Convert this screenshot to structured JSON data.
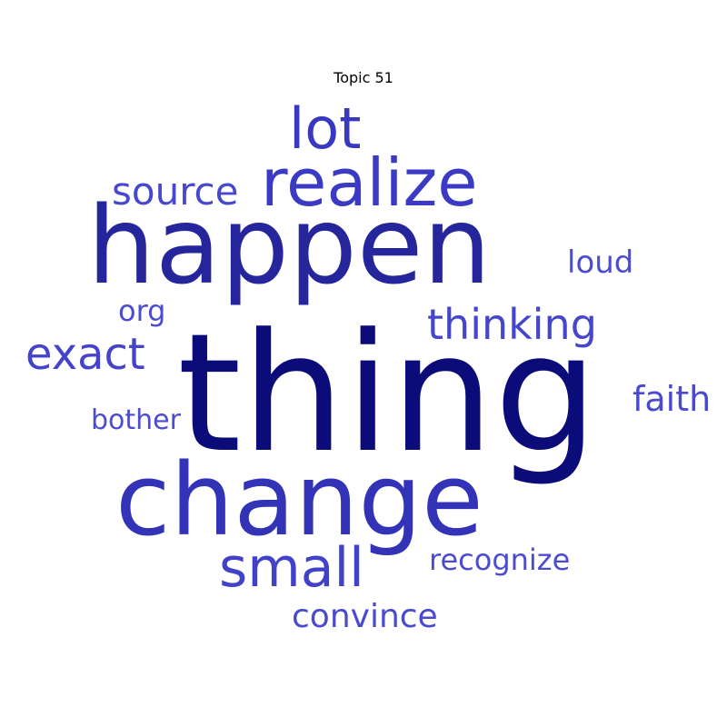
{
  "title": "Topic 51",
  "words": [
    {
      "text": "thing",
      "color": "#0b0b7a"
    },
    {
      "text": "happen",
      "color": "#26269c"
    },
    {
      "text": "change",
      "color": "#3333b8"
    },
    {
      "text": "realize",
      "color": "#3a3ac4"
    },
    {
      "text": "lot",
      "color": "#3838c0"
    },
    {
      "text": "small",
      "color": "#4242c8"
    },
    {
      "text": "thinking",
      "color": "#4646cc"
    },
    {
      "text": "exact",
      "color": "#4444ca"
    },
    {
      "text": "source",
      "color": "#4848cc"
    },
    {
      "text": "faith",
      "color": "#4a4ace"
    },
    {
      "text": "convince",
      "color": "#4a4ace"
    },
    {
      "text": "recognize",
      "color": "#4c4cd0"
    },
    {
      "text": "loud",
      "color": "#4c4cd0"
    },
    {
      "text": "bother",
      "color": "#4c4cd0"
    },
    {
      "text": "org",
      "color": "#4c4cd0"
    }
  ]
}
